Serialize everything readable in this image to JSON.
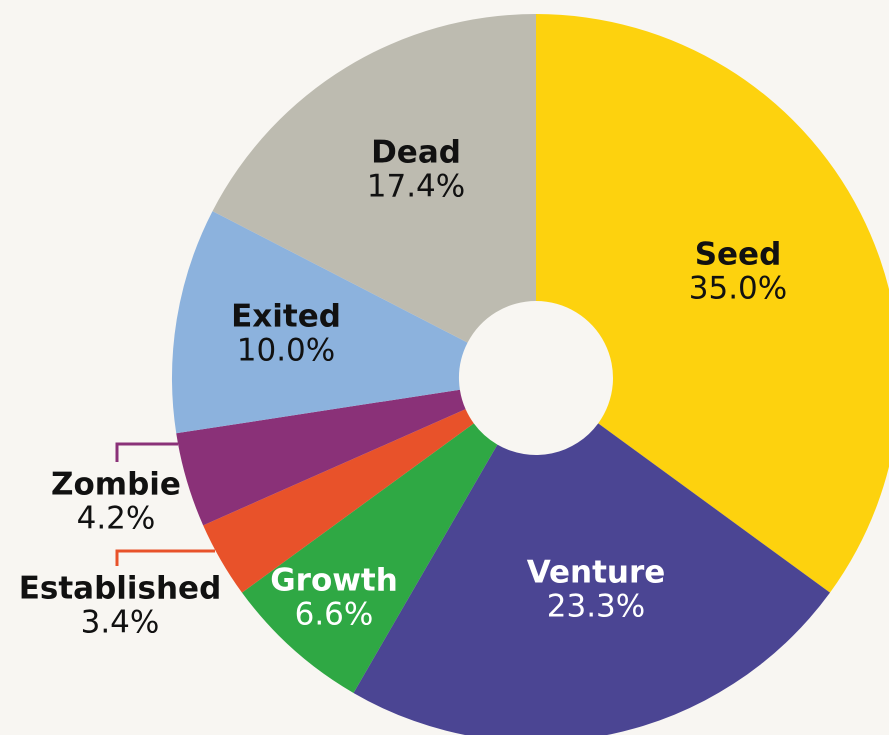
{
  "chart_data": {
    "type": "pie",
    "categories": [
      "Seed",
      "Venture",
      "Growth",
      "Established",
      "Zombie",
      "Exited",
      "Dead"
    ],
    "values": [
      35.0,
      23.3,
      6.6,
      3.4,
      4.2,
      10.0,
      17.4
    ],
    "value_labels": [
      "35.0%",
      "23.3%",
      "6.6%",
      "3.4%",
      "4.2%",
      "10.0%",
      "17.4%"
    ],
    "colors": [
      "#fdd20e",
      "#4b4593",
      "#2fa844",
      "#e8522a",
      "#8a3178",
      "#8cb2dd",
      "#bdbbb0"
    ],
    "label_colors": [
      "#111111",
      "#ffffff",
      "#ffffff",
      "#111111",
      "#111111",
      "#111111",
      "#111111"
    ]
  }
}
